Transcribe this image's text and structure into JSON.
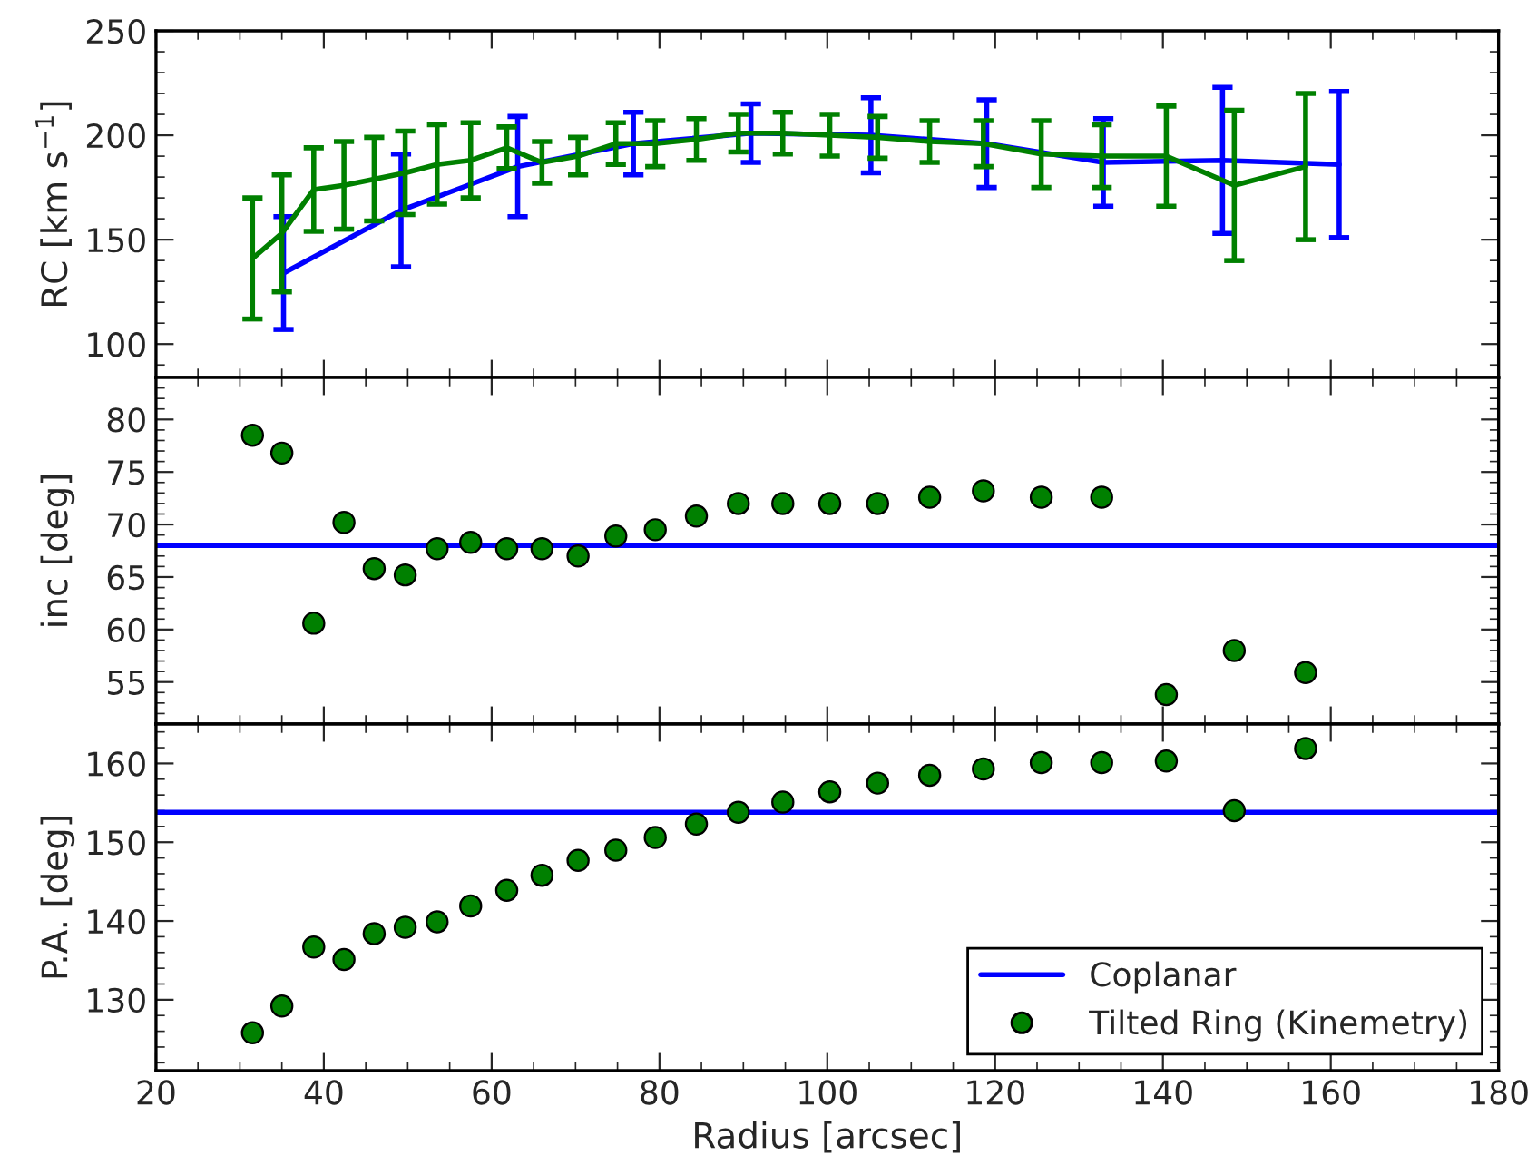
{
  "chart_data": [
    {
      "type": "line",
      "ylabel": "RC [km s$^{−1}$]",
      "xlim": [
        20,
        180
      ],
      "xticks": [
        20,
        40,
        60,
        80,
        100,
        120,
        140,
        160,
        180
      ],
      "ylim": [
        84,
        250
      ],
      "yticks": [
        100,
        150,
        200,
        250
      ],
      "tick_labels": "y",
      "grid": false,
      "legend": false,
      "marker": "none",
      "line_style": "solid",
      "series": [
        {
          "color": "#0000ff",
          "x": [
            35.2,
            49.2,
            63.1,
            76.9,
            90.9,
            105.2,
            119,
            132.9,
            147.1,
            161
          ],
          "values": [
            134,
            164,
            185,
            196,
            201,
            200,
            196,
            187,
            188,
            186
          ],
          "errors": [
            27,
            27,
            24,
            15,
            14,
            18,
            21,
            21,
            35,
            35
          ]
        },
        {
          "color": "#008000",
          "x": [
            31.5,
            35,
            38.8,
            42.4,
            46,
            49.7,
            53.5,
            57.5,
            61.8,
            66,
            70.3,
            74.8,
            79.5,
            84.4,
            89.4,
            94.7,
            100.3,
            106,
            112.2,
            118.6,
            125.5,
            132.7,
            140.4,
            148.5,
            157
          ],
          "values": [
            141,
            153,
            174,
            176,
            179,
            182,
            186,
            188,
            194,
            187,
            190,
            196,
            196,
            198,
            201,
            201,
            200,
            199,
            197,
            196,
            191,
            190,
            190,
            176,
            185
          ],
          "errors": [
            29,
            28,
            20,
            21,
            20,
            20,
            19,
            18,
            10,
            10,
            9,
            10,
            11,
            10,
            9,
            10,
            10,
            10,
            10,
            11,
            16,
            15,
            24,
            36,
            35
          ]
        }
      ]
    },
    {
      "type": "scatter",
      "ylabel": "inc [deg]",
      "xlim": [
        20,
        180
      ],
      "xticks": [
        20,
        40,
        60,
        80,
        100,
        120,
        140,
        160,
        180
      ],
      "ylim": [
        51,
        84
      ],
      "yticks": [
        55,
        60,
        65,
        70,
        75,
        80
      ],
      "tick_labels": "y",
      "grid": false,
      "legend": false,
      "series": [
        {
          "type": "line",
          "color": "#0000ff",
          "marker": "none",
          "x": [
            20,
            180
          ],
          "values": [
            68,
            68
          ]
        },
        {
          "type": "scatter",
          "color": "#008000",
          "marker": "circle",
          "x": [
            31.5,
            35,
            38.8,
            42.4,
            46,
            49.7,
            53.5,
            57.5,
            61.8,
            66,
            70.3,
            74.8,
            79.5,
            84.4,
            89.4,
            94.7,
            100.3,
            106,
            112.2,
            118.6,
            125.5,
            132.7,
            140.4,
            148.5,
            157
          ],
          "values": [
            78.5,
            76.8,
            60.6,
            70.2,
            65.8,
            65.2,
            67.7,
            68.3,
            67.7,
            67.7,
            67.0,
            68.9,
            69.5,
            70.8,
            72.0,
            72.0,
            72.0,
            72.0,
            72.6,
            73.2,
            72.6,
            72.6,
            53.8,
            58.0,
            55.9
          ]
        }
      ]
    },
    {
      "type": "scatter",
      "ylabel": "P.A. [deg]",
      "xlabel": "Radius [arcsec]",
      "xlim": [
        20,
        180
      ],
      "xticks": [
        20,
        40,
        60,
        80,
        100,
        120,
        140,
        160,
        180
      ],
      "ylim": [
        121,
        165
      ],
      "yticks": [
        130,
        140,
        150,
        160
      ],
      "grid": false,
      "legend": "bottom right",
      "series": [
        {
          "type": "line",
          "name": "Coplanar",
          "color": "#0000ff",
          "marker": "none",
          "x": [
            20,
            180
          ],
          "values": [
            153.8,
            153.8
          ]
        },
        {
          "type": "scatter",
          "name": "Tilted Ring (Kinemetry)",
          "color": "#008000",
          "marker": "circle",
          "x": [
            31.5,
            35,
            38.8,
            42.4,
            46,
            49.7,
            53.5,
            57.5,
            61.8,
            66,
            70.3,
            74.8,
            79.5,
            84.4,
            89.4,
            94.7,
            100.3,
            106,
            112.2,
            118.6,
            125.5,
            132.7,
            140.4,
            148.5,
            157
          ],
          "values": [
            125.8,
            129.2,
            136.7,
            135.1,
            138.4,
            139.2,
            139.9,
            141.9,
            143.9,
            145.8,
            147.7,
            149.0,
            150.6,
            152.3,
            153.8,
            155.1,
            156.4,
            157.5,
            158.5,
            159.3,
            160.1,
            160.1,
            160.3,
            154.0,
            161.9
          ]
        }
      ]
    }
  ]
}
